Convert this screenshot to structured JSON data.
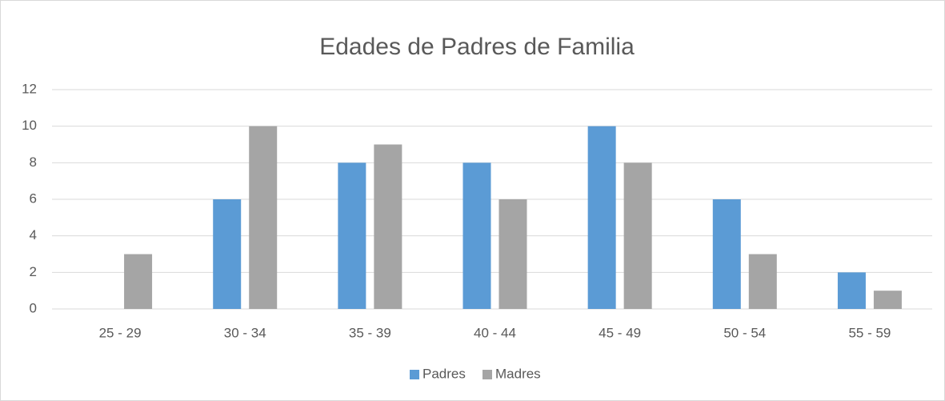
{
  "chart_data": {
    "type": "bar",
    "title": "Edades de Padres de Familia",
    "categories": [
      "25 - 29",
      "30 - 34",
      "35 - 39",
      "40 - 44",
      "45 - 49",
      "50 - 54",
      "55 - 59"
    ],
    "series": [
      {
        "name": "Padres",
        "color": "#5b9bd5",
        "values": [
          0,
          6,
          8,
          8,
          10,
          6,
          2
        ]
      },
      {
        "name": "Madres",
        "color": "#a5a5a5",
        "values": [
          3,
          10,
          9,
          6,
          8,
          3,
          1
        ]
      }
    ],
    "ylim": [
      0,
      12
    ],
    "yticks": [
      0,
      2,
      4,
      6,
      8,
      10,
      12
    ],
    "grid": true,
    "legend": "bottom"
  }
}
